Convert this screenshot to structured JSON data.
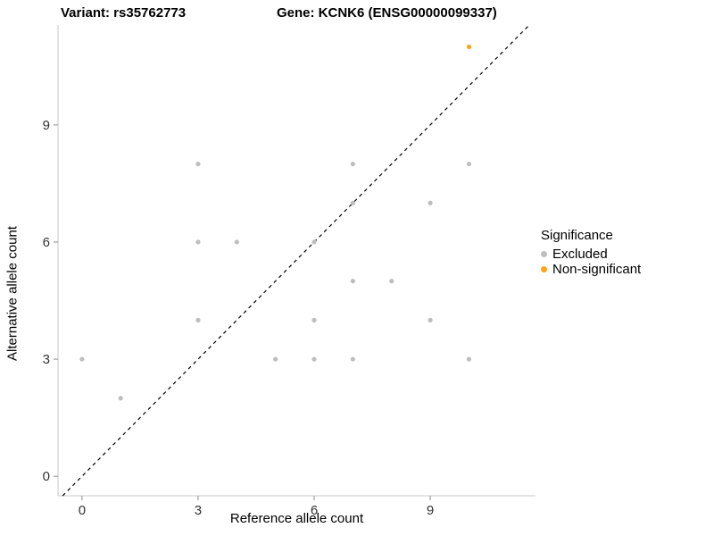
{
  "title": {
    "left": "Variant: rs35762773",
    "right": "Gene: KCNK6 (ENSG00000099337)"
  },
  "axes": {
    "x_label": "Reference allele count",
    "y_label": "Alternative allele count"
  },
  "legend": {
    "title": "Significance",
    "items": [
      {
        "label": "Excluded",
        "color": "#BEBEBE"
      },
      {
        "label": "Non-significant",
        "color": "#FFA319"
      }
    ]
  },
  "chart_data": {
    "type": "scatter",
    "title": "Variant: rs35762773   Gene: KCNK6 (ENSG00000099337)",
    "xlabel": "Reference allele count",
    "ylabel": "Alternative allele count",
    "xlim": [
      -0.62,
      11.72
    ],
    "ylim": [
      -0.5,
      11.56
    ],
    "xticks": [
      0,
      3,
      6,
      9
    ],
    "yticks": [
      0,
      3,
      6,
      9
    ],
    "grid": false,
    "legend_position": "right",
    "reference_line": {
      "type": "identity",
      "style": "dashed",
      "color": "#000000"
    },
    "series": [
      {
        "name": "Excluded",
        "color": "#BEBEBE",
        "points": [
          [
            0,
            3
          ],
          [
            1,
            2
          ],
          [
            3,
            4
          ],
          [
            3,
            6
          ],
          [
            3,
            8
          ],
          [
            4,
            6
          ],
          [
            5,
            3
          ],
          [
            6,
            3
          ],
          [
            6,
            4
          ],
          [
            6,
            6
          ],
          [
            7,
            3
          ],
          [
            7,
            5
          ],
          [
            7,
            7
          ],
          [
            7,
            8
          ],
          [
            8,
            5
          ],
          [
            9,
            4
          ],
          [
            9,
            7
          ],
          [
            10,
            3
          ],
          [
            10,
            8
          ]
        ]
      },
      {
        "name": "Non-significant",
        "color": "#FFA319",
        "points": [
          [
            10,
            11
          ]
        ]
      }
    ]
  }
}
